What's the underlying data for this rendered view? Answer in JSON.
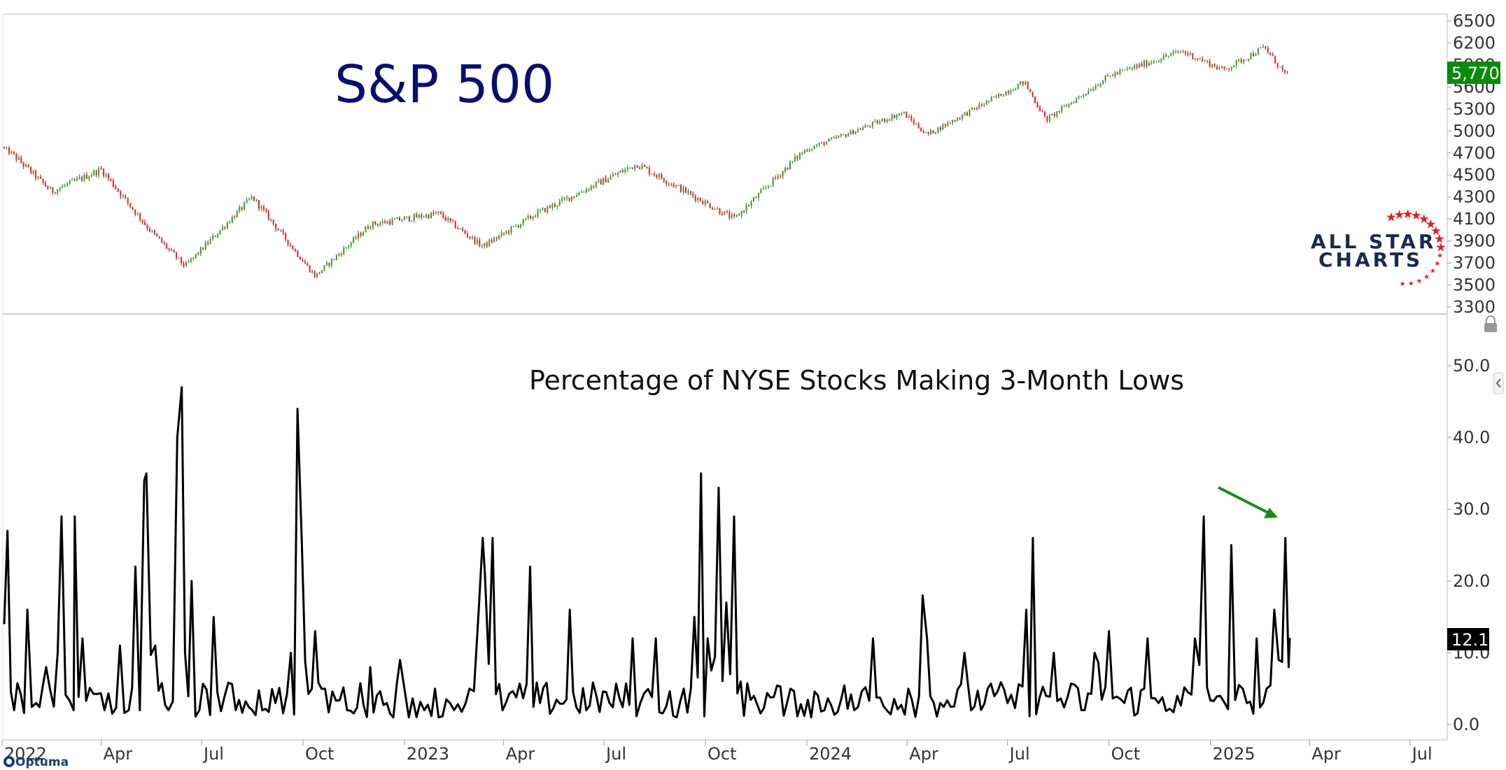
{
  "chart_data": [
    {
      "type": "candlestick",
      "title": "S&P 500",
      "ylim": [
        3300,
        6500
      ],
      "y_ticks": [
        "6500",
        "6200",
        "5900",
        "5600",
        "5300",
        "5000",
        "4700",
        "4500",
        "4300",
        "4100",
        "3900",
        "3700",
        "3500",
        "3300"
      ],
      "last_value_label": "5,770",
      "last_value": 5770,
      "colors": {
        "up": "#2e9e2e",
        "down": "#e0202a",
        "badge": "#0b8a0b"
      },
      "x": [
        "2022-01-01",
        "2022-02-15",
        "2022-04-01",
        "2022-05-15",
        "2022-06-16",
        "2022-08-16",
        "2022-10-12",
        "2022-12-01",
        "2023-02-01",
        "2023-03-13",
        "2023-05-01",
        "2023-07-31",
        "2023-10-27",
        "2024-01-01",
        "2024-03-28",
        "2024-04-19",
        "2024-07-16",
        "2024-08-05",
        "2024-10-01",
        "2024-12-06",
        "2025-01-13",
        "2025-02-19",
        "2025-03-10"
      ],
      "y": [
        4780,
        4350,
        4550,
        4000,
        3670,
        4300,
        3580,
        4050,
        4150,
        3850,
        4150,
        4600,
        4100,
        4750,
        5250,
        4950,
        5670,
        5150,
        5750,
        6090,
        5830,
        6140,
        5770
      ]
    },
    {
      "type": "line",
      "title": "Percentage of NYSE Stocks Making 3-Month Lows",
      "ylim": [
        -2,
        57
      ],
      "y_ticks": [
        "50.0",
        "40.0",
        "30.0",
        "20.0",
        "10.0",
        "0.0"
      ],
      "last_value_label": "12.1",
      "last_value": 12.1,
      "colors": {
        "line": "#000000",
        "badge": "#000000",
        "arrow": "#1a8a1a"
      },
      "x": [
        "2022-01-03",
        "2022-01-06",
        "2022-01-12",
        "2022-01-24",
        "2022-02-01",
        "2022-02-10",
        "2022-02-24",
        "2022-03-07",
        "2022-03-08",
        "2022-03-15",
        "2022-04-04",
        "2022-04-18",
        "2022-04-26",
        "2022-05-02",
        "2022-05-06",
        "2022-05-10",
        "2022-05-12",
        "2022-05-20",
        "2022-06-01",
        "2022-06-09",
        "2022-06-13",
        "2022-06-16",
        "2022-06-22",
        "2022-06-29",
        "2022-07-12",
        "2022-08-01",
        "2022-08-16",
        "2022-09-06",
        "2022-09-20",
        "2022-09-26",
        "2022-09-30",
        "2022-10-12",
        "2022-10-21",
        "2022-11-10",
        "2022-12-01",
        "2022-12-16",
        "2022-12-28",
        "2023-01-05",
        "2023-01-19",
        "2023-02-01",
        "2023-02-15",
        "2023-03-01",
        "2023-03-09",
        "2023-03-13",
        "2023-03-15",
        "2023-03-22",
        "2023-04-03",
        "2023-04-25",
        "2023-05-04",
        "2023-05-31",
        "2023-06-15",
        "2023-07-06",
        "2023-07-27",
        "2023-08-03",
        "2023-08-17",
        "2023-09-05",
        "2023-09-21",
        "2023-09-27",
        "2023-10-03",
        "2023-10-13",
        "2023-10-20",
        "2023-10-27",
        "2023-11-02",
        "2023-11-14",
        "2023-12-14",
        "2024-01-05",
        "2024-01-17",
        "2024-02-13",
        "2024-03-01",
        "2024-04-02",
        "2024-04-15",
        "2024-04-19",
        "2024-05-01",
        "2024-05-23",
        "2024-06-13",
        "2024-07-01",
        "2024-07-18",
        "2024-07-24",
        "2024-08-05",
        "2024-08-12",
        "2024-09-06",
        "2024-09-18",
        "2024-10-01",
        "2024-10-15",
        "2024-11-05",
        "2024-11-15",
        "2024-12-02",
        "2024-12-18",
        "2024-12-26",
        "2025-01-10",
        "2025-01-14",
        "2025-01-20",
        "2025-02-03",
        "2025-02-12",
        "2025-02-21",
        "2025-02-28",
        "2025-03-04",
        "2025-03-10",
        "2025-03-13",
        "2025-03-14"
      ],
      "y": [
        14,
        27,
        2,
        16,
        3,
        8,
        29,
        2,
        29,
        12,
        2,
        11,
        2,
        22,
        2,
        34,
        35,
        11,
        2,
        40,
        47,
        10,
        20,
        2,
        15,
        2,
        2,
        3,
        10,
        44,
        25,
        13,
        5,
        2,
        8,
        3,
        9,
        1,
        2,
        1,
        2,
        5,
        15,
        26,
        21,
        26,
        3,
        22,
        3,
        16,
        2,
        3,
        12,
        3,
        12,
        1,
        15,
        35,
        12,
        33,
        17,
        29,
        6,
        4,
        3,
        1,
        2,
        2,
        12,
        5,
        18,
        12,
        3,
        10,
        5,
        3,
        16,
        26,
        4,
        10,
        2,
        10,
        13,
        3,
        12,
        3,
        4,
        12,
        29,
        4,
        3,
        25,
        3,
        12,
        5,
        16,
        9,
        26,
        8,
        12.1
      ]
    }
  ],
  "x_axis": {
    "labels": [
      "2022",
      "Apr",
      "Jul",
      "Oct",
      "2023",
      "Apr",
      "Jul",
      "Oct",
      "2024",
      "Apr",
      "Jul",
      "Oct",
      "2025",
      "Apr",
      "Jul"
    ]
  },
  "logo": {
    "line1": "ALL STAR",
    "line2": "CHARTS"
  },
  "footer": {
    "brand": "Optuma"
  },
  "icons": [
    "lock-icon",
    "collapse-arrow-icon",
    "optuma-logo-icon",
    "stars-icon"
  ]
}
